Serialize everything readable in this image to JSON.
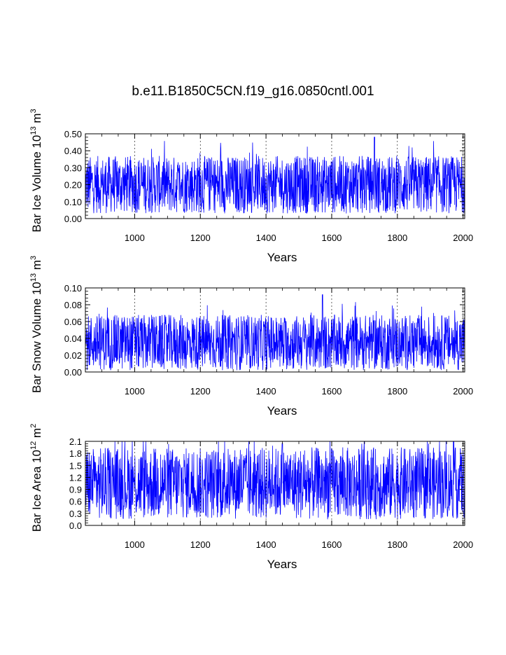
{
  "figure": {
    "title": "b.e11.B1850C5CN.f19_g16.0850cntl.001"
  },
  "chart_data": [
    {
      "type": "line",
      "id": "ice-volume",
      "title": "b.e11.B1850C5CN.f19_g16.0850cntl.001",
      "xlabel": "Years",
      "ylabel": "Bar Ice Volume",
      "ylabel_unit_base": "10",
      "ylabel_unit_exp": "13",
      "ylabel_unit_m": "m",
      "ylabel_unit_mexp": "3",
      "xlim": [
        850,
        2005
      ],
      "ylim": [
        0.0,
        0.5
      ],
      "xticks": [
        1000,
        1200,
        1400,
        1600,
        1800,
        2000
      ],
      "xtick_labels": [
        "1000",
        "1200",
        "1400",
        "1600",
        "1800",
        "2000"
      ],
      "yticks": [
        0.0,
        0.1,
        0.2,
        0.3,
        0.4,
        0.5
      ],
      "ytick_labels": [
        "0.00",
        "0.10",
        "0.20",
        "0.30",
        "0.40",
        "0.50"
      ],
      "grid_x": true,
      "color": "#0000ff",
      "series": {
        "name": "Bar Ice Volume",
        "mean": 0.2,
        "typical_max": 0.37,
        "typical_min": 0.03,
        "peak": 0.48,
        "peak_year": 1730
      }
    },
    {
      "type": "line",
      "id": "snow-volume",
      "xlabel": "Years",
      "ylabel": "Bar Snow Volume",
      "ylabel_unit_base": "10",
      "ylabel_unit_exp": "13",
      "ylabel_unit_m": "m",
      "ylabel_unit_mexp": "3",
      "xlim": [
        850,
        2005
      ],
      "ylim": [
        0.0,
        0.1
      ],
      "xticks": [
        1000,
        1200,
        1400,
        1600,
        1800,
        2000
      ],
      "xtick_labels": [
        "1000",
        "1200",
        "1400",
        "1600",
        "1800",
        "2000"
      ],
      "yticks": [
        0.0,
        0.02,
        0.04,
        0.06,
        0.08,
        0.1
      ],
      "ytick_labels": [
        "0.00",
        "0.02",
        "0.04",
        "0.06",
        "0.08",
        "0.10"
      ],
      "grid_x": true,
      "color": "#0000ff",
      "series": {
        "name": "Bar Snow Volume",
        "mean": 0.03,
        "typical_max": 0.068,
        "typical_min": 0.002,
        "peak": 0.092,
        "peak_year": 1572
      }
    },
    {
      "type": "line",
      "id": "ice-area",
      "xlabel": "Years",
      "ylabel": "Bar Ice Area",
      "ylabel_unit_base": "10",
      "ylabel_unit_exp": "12",
      "ylabel_unit_m": "m",
      "ylabel_unit_mexp": "2",
      "xlim": [
        850,
        2005
      ],
      "ylim": [
        0.0,
        2.1
      ],
      "xticks": [
        1000,
        1200,
        1400,
        1600,
        1800,
        2000
      ],
      "xtick_labels": [
        "1000",
        "1200",
        "1400",
        "1600",
        "1800",
        "2000"
      ],
      "yticks": [
        0.0,
        0.3,
        0.6,
        0.9,
        1.2,
        1.5,
        1.8,
        2.1
      ],
      "ytick_labels": [
        "0.0",
        "0.3",
        "0.6",
        "0.9",
        "1.2",
        "1.5",
        "1.8",
        "2.1"
      ],
      "grid_x": true,
      "color": "#0000ff",
      "series": {
        "name": "Bar Ice Area",
        "mean": 1.2,
        "typical_max": 1.95,
        "typical_min": 0.15,
        "peak": 2.05,
        "peak_year": 1450
      }
    }
  ]
}
